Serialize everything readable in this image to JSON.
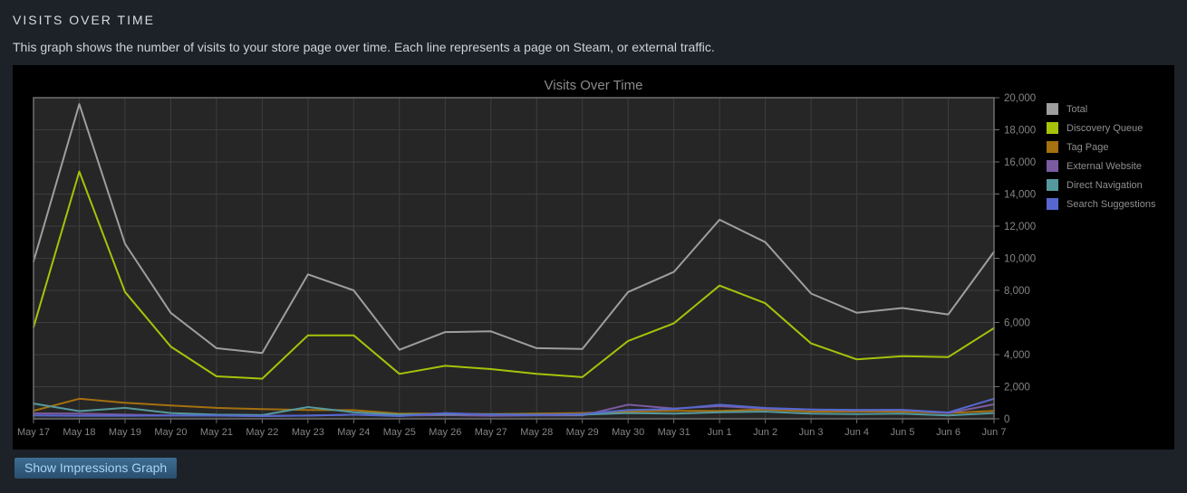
{
  "page": {
    "title": "VISITS OVER TIME",
    "description": "This graph shows the number of visits to your store page over time. Each line represents a page on Steam, or external traffic.",
    "button_label": "Show Impressions Graph"
  },
  "chart_data": {
    "type": "line",
    "title": "Visits Over Time",
    "legend_position": "right-outside",
    "grid": true,
    "x_labels": [
      "May 17",
      "May 18",
      "May 19",
      "May 20",
      "May 21",
      "May 22",
      "May 23",
      "May 24",
      "May 25",
      "May 26",
      "May 27",
      "May 28",
      "May 29",
      "May 30",
      "May 31",
      "Jun 1",
      "Jun 2",
      "Jun 3",
      "Jun 4",
      "Jun 5",
      "Jun 6",
      "Jun 7"
    ],
    "y_axis": {
      "min": 0,
      "max": 20000,
      "step": 2000,
      "side": "right"
    },
    "series": [
      {
        "name": "Total",
        "color": "#9e9e9e",
        "values": [
          9800,
          19600,
          10900,
          6600,
          4400,
          4100,
          9000,
          8000,
          4300,
          5400,
          5450,
          4400,
          4350,
          7900,
          9150,
          12400,
          11000,
          7800,
          6600,
          6900,
          6500,
          10400
        ]
      },
      {
        "name": "Discovery Queue",
        "color": "#a6c30a",
        "values": [
          5700,
          15400,
          7900,
          4500,
          2650,
          2500,
          5200,
          5200,
          2800,
          3300,
          3100,
          2800,
          2600,
          4850,
          5950,
          8300,
          7200,
          4700,
          3700,
          3900,
          3850,
          5650
        ]
      },
      {
        "name": "Tag Page",
        "color": "#a5700f",
        "values": [
          500,
          1250,
          1000,
          830,
          680,
          600,
          550,
          540,
          320,
          320,
          300,
          320,
          360,
          450,
          490,
          490,
          580,
          450,
          450,
          450,
          360,
          490
        ]
      },
      {
        "name": "External Website",
        "color": "#7b5ba0",
        "values": [
          340,
          320,
          260,
          210,
          200,
          180,
          200,
          260,
          200,
          230,
          190,
          210,
          210,
          880,
          640,
          790,
          640,
          580,
          530,
          560,
          360,
          900
        ]
      },
      {
        "name": "Direct Navigation",
        "color": "#55999e",
        "values": [
          950,
          480,
          680,
          360,
          260,
          230,
          730,
          410,
          260,
          300,
          280,
          260,
          260,
          360,
          320,
          410,
          450,
          320,
          300,
          320,
          210,
          360
        ]
      },
      {
        "name": "Search Suggestions",
        "color": "#5668cf",
        "values": [
          210,
          190,
          190,
          200,
          200,
          170,
          200,
          260,
          170,
          360,
          260,
          240,
          300,
          550,
          600,
          880,
          675,
          580,
          560,
          560,
          395,
          1250
        ]
      }
    ],
    "style": {
      "panel_bg": "#000000",
      "plot_bg": "#262626",
      "grid_color": "#3d3d3d",
      "border_color": "#6f6f6f",
      "title_color": "#8b8b8b",
      "axis_text_color": "#848484",
      "legend_text_color": "#8f8f8f"
    }
  }
}
